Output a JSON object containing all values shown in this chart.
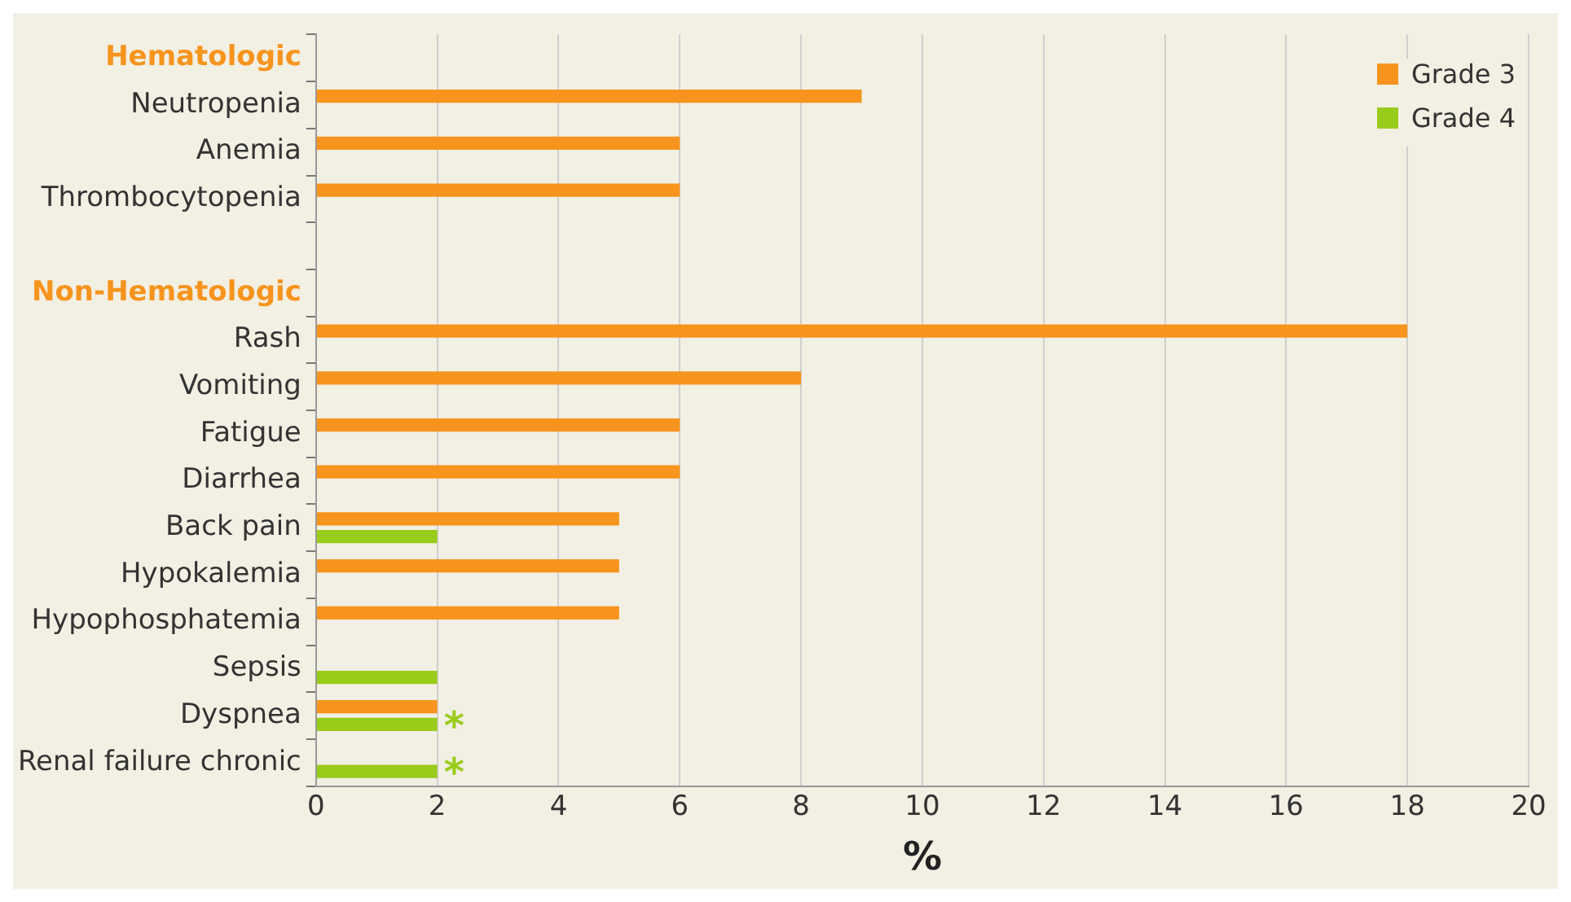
{
  "chart_data": {
    "type": "bar",
    "orientation": "horizontal",
    "xlabel": "%",
    "categories": [
      "Hematologic",
      "Neutropenia",
      "Anemia",
      "Thrombocytopenia",
      null,
      "Non-Hematologic",
      "Rash",
      "Vomiting",
      "Fatigue",
      "Diarrhea",
      "Back pain",
      "Hypokalemia",
      "Hypophosphatemia",
      "Sepsis",
      "Dyspnea",
      "Renal failure chronic"
    ],
    "series": [
      {
        "name": "Grade 3",
        "color": "#f7941d",
        "values": [
          null,
          9,
          6,
          6,
          null,
          null,
          18,
          8,
          6,
          6,
          5,
          5,
          5,
          null,
          2,
          null
        ]
      },
      {
        "name": "Grade 4",
        "color": "#99cc1a",
        "values": [
          null,
          null,
          null,
          null,
          null,
          null,
          null,
          null,
          null,
          null,
          2,
          null,
          null,
          2,
          2,
          2
        ]
      }
    ],
    "xlim": [
      0,
      20
    ],
    "xticks": [
      0,
      2,
      4,
      6,
      8,
      10,
      12,
      14,
      16,
      18,
      20
    ],
    "grid": "x",
    "legend": "top right",
    "annotations": [
      {
        "text": "*",
        "x": 2,
        "y": "Dyspnea"
      },
      {
        "text": "*",
        "x": 2,
        "y": "Renal failure chronic"
      }
    ]
  }
}
